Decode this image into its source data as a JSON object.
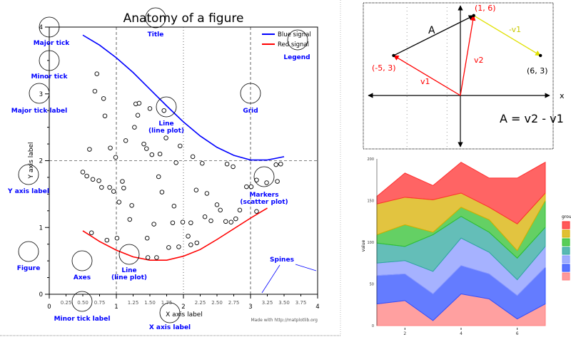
{
  "chart_data": [
    {
      "type": "line",
      "title": "Anatomy of a figure",
      "xlabel": "X axis label",
      "ylabel": "Y axis label",
      "xlim": [
        0,
        4
      ],
      "ylim": [
        0,
        4
      ],
      "grid": true,
      "legend_placement": "top-right",
      "x_major_ticks": [
        "0",
        "1",
        "2",
        "3",
        "4"
      ],
      "x_minor_ticks": [
        "0.25",
        "0.50",
        "0.75",
        "1.25",
        "1.50",
        "1.75",
        "2.25",
        "2.50",
        "2.75",
        "3.25",
        "3.50",
        "3.75"
      ],
      "y_major_ticks": [
        "0",
        "1",
        "2",
        "3",
        "4"
      ],
      "series": [
        {
          "name": "Blue signal",
          "kind": "line",
          "color": "#0000ff",
          "x": [
            0.5,
            0.75,
            1,
            1.25,
            1.5,
            1.75,
            2,
            2.25,
            2.5,
            2.75,
            3,
            3.25,
            3.5
          ],
          "y": [
            3.88,
            3.73,
            3.54,
            3.32,
            3.07,
            2.82,
            2.58,
            2.37,
            2.2,
            2.08,
            2.01,
            2.01,
            2.06
          ]
        },
        {
          "name": "Red signal",
          "kind": "line",
          "color": "#ff0000",
          "x": [
            0.5,
            0.75,
            1,
            1.25,
            1.5,
            1.75,
            2,
            2.25,
            2.5,
            2.75,
            3,
            3.25
          ],
          "y": [
            0.95,
            0.79,
            0.66,
            0.56,
            0.51,
            0.51,
            0.57,
            0.67,
            0.82,
            0.98,
            1.14,
            1.29
          ]
        },
        {
          "kind": "scatter",
          "color": "#000000",
          "points": [
            [
              0.71,
              3.3
            ],
            [
              0.68,
              3.04
            ],
            [
              0.81,
              2.93
            ],
            [
              0.83,
              2.67
            ],
            [
              0.6,
              2.17
            ],
            [
              0.91,
              2.19
            ],
            [
              0.99,
              2.05
            ],
            [
              1.14,
              2.3
            ],
            [
              1.27,
              2.5
            ],
            [
              1.29,
              2.85
            ],
            [
              1.34,
              2.86
            ],
            [
              1.32,
              2.68
            ],
            [
              1.5,
              2.78
            ],
            [
              1.71,
              2.75
            ],
            [
              1.41,
              2.25
            ],
            [
              1.45,
              2.18
            ],
            [
              1.53,
              2.09
            ],
            [
              1.65,
              2.1
            ],
            [
              1.74,
              2.34
            ],
            [
              1.95,
              2.22
            ],
            [
              1.89,
              1.97
            ],
            [
              2.14,
              2.06
            ],
            [
              2.28,
              1.96
            ],
            [
              2.65,
              1.95
            ],
            [
              2.74,
              1.91
            ],
            [
              3.38,
              1.94
            ],
            [
              3.45,
              1.95
            ],
            [
              0.5,
              1.83
            ],
            [
              0.56,
              1.77
            ],
            [
              0.65,
              1.72
            ],
            [
              0.74,
              1.7
            ],
            [
              0.78,
              1.6
            ],
            [
              0.9,
              1.6
            ],
            [
              0.96,
              1.54
            ],
            [
              1.09,
              1.69
            ],
            [
              1.11,
              1.59
            ],
            [
              1.04,
              1.38
            ],
            [
              1.23,
              1.33
            ],
            [
              1.2,
              1.12
            ],
            [
              1.63,
              1.76
            ],
            [
              1.68,
              1.53
            ],
            [
              1.56,
              1.05
            ],
            [
              1.86,
              1.32
            ],
            [
              1.84,
              1.07
            ],
            [
              1.99,
              1.08
            ],
            [
              2.07,
              0.87
            ],
            [
              2.11,
              1.07
            ],
            [
              1.78,
              0.7
            ],
            [
              1.93,
              0.71
            ],
            [
              1.46,
              0.84
            ],
            [
              1.6,
              0.55
            ],
            [
              1.47,
              0.55
            ],
            [
              0.63,
              0.92
            ],
            [
              0.86,
              0.81
            ],
            [
              1.01,
              0.84
            ],
            [
              2.19,
              1.56
            ],
            [
              2.35,
              1.51
            ],
            [
              2.5,
              1.34
            ],
            [
              2.55,
              1.26
            ],
            [
              2.32,
              1.16
            ],
            [
              2.41,
              1.1
            ],
            [
              2.63,
              1.09
            ],
            [
              2.71,
              1.08
            ],
            [
              2.78,
              1.13
            ],
            [
              2.84,
              1.26
            ],
            [
              3.09,
              1.71
            ],
            [
              3.24,
              1.67
            ],
            [
              3.4,
              1.69
            ],
            [
              2.94,
              1.61
            ],
            [
              3.01,
              1.61
            ],
            [
              3.09,
              1.24
            ],
            [
              2.11,
              0.74
            ],
            [
              2.2,
              0.77
            ]
          ]
        }
      ],
      "annotations": [
        {
          "label": "Major tick"
        },
        {
          "label": "Minor tick"
        },
        {
          "label": "Major tick label"
        },
        {
          "label": "Title"
        },
        {
          "label": "Legend"
        },
        {
          "label": "Grid"
        },
        {
          "label": "Line",
          "label2": "(line plot)"
        },
        {
          "label": "Y axis label"
        },
        {
          "label": "Markers",
          "label2": "(scatter plot)"
        },
        {
          "label": "Figure"
        },
        {
          "label": "Axes"
        },
        {
          "label": "Line",
          "label2": "(line plot)"
        },
        {
          "label": "Minor tick label"
        },
        {
          "label": "X axis label"
        },
        {
          "label": "Spines"
        }
      ],
      "annotation_color": "#0000ff",
      "credit": "Made with http://matplotlib.org"
    },
    {
      "type": "vector-diagram",
      "xlabel": "x",
      "points": [
        {
          "label": "(-5, 3)",
          "x": -5,
          "y": 3,
          "color": "#ff0000"
        },
        {
          "label": "(1, 6)",
          "x": 1,
          "y": 6,
          "color": "#ff0000"
        },
        {
          "label": "(6, 3)",
          "x": 6,
          "y": 3,
          "color": "#000000"
        }
      ],
      "vectors": [
        {
          "label": "A",
          "from": [
            -5,
            3
          ],
          "to": [
            1,
            6
          ],
          "color": "#000000"
        },
        {
          "label": "v2",
          "from": [
            0,
            0
          ],
          "to": [
            1,
            6
          ],
          "color": "#ff0000"
        },
        {
          "label": "v1",
          "from": [
            0,
            0
          ],
          "to": [
            -5,
            3
          ],
          "color": "#ff0000"
        },
        {
          "label": "-v1",
          "from": [
            1,
            6
          ],
          "to": [
            6,
            3
          ],
          "color": "#e0e000"
        }
      ],
      "equation": "A = v2 - v1"
    },
    {
      "type": "area",
      "stacked": true,
      "ylabel": "value",
      "legend_title": "group",
      "legend_placement": "right",
      "x": [
        1,
        2,
        3,
        4,
        5,
        6,
        7
      ],
      "x_ticks": [
        "2",
        "4",
        "6"
      ],
      "y_ticks": [
        "0",
        "50",
        "100",
        "150",
        "200"
      ],
      "ylim": [
        0,
        200
      ],
      "series": [
        {
          "color": "#ff8080",
          "values": [
            26,
            30,
            6,
            38,
            32,
            8,
            26
          ]
        },
        {
          "color": "#3050ff",
          "values": [
            34,
            32,
            32,
            34,
            30,
            28,
            44
          ]
        },
        {
          "color": "#8898ff",
          "values": [
            15,
            16,
            27,
            33,
            26,
            19,
            25
          ]
        },
        {
          "color": "#30a8a0",
          "values": [
            24,
            17,
            44,
            26,
            24,
            26,
            23
          ]
        },
        {
          "color": "#30c030",
          "values": [
            10,
            26,
            3,
            11,
            15,
            9,
            32
          ]
        },
        {
          "color": "#d8b000",
          "values": [
            37,
            33,
            39,
            17,
            15,
            32,
            9
          ]
        },
        {
          "color": "#ff3030",
          "values": [
            9,
            29,
            17,
            37,
            35,
            55,
            37
          ]
        }
      ]
    }
  ]
}
